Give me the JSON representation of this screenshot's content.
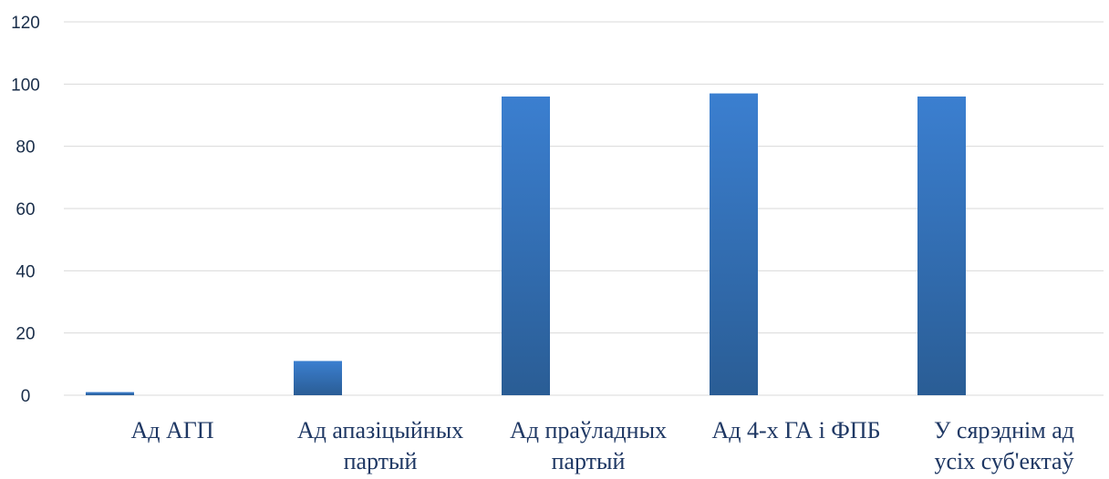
{
  "chart_data": {
    "type": "bar",
    "categories": [
      [
        "Ад АГП"
      ],
      [
        "Ад апазіцыйных",
        "партый"
      ],
      [
        "Ад праўладных",
        "партый"
      ],
      [
        "Ад 4-х ГА і ФПБ"
      ],
      [
        "У сярэднім ад",
        "усіх суб'ектаў"
      ]
    ],
    "series": [
      {
        "values": [
          1,
          11,
          96,
          97,
          96
        ]
      }
    ],
    "ylim": [
      0,
      120
    ],
    "yticks": [
      0,
      20,
      40,
      60,
      80,
      100,
      120
    ],
    "grid": true,
    "colors": {
      "bar_top": "#3b7fd0",
      "bar_bottom": "#2a5d95",
      "grid": "#d9d9d9"
    }
  }
}
